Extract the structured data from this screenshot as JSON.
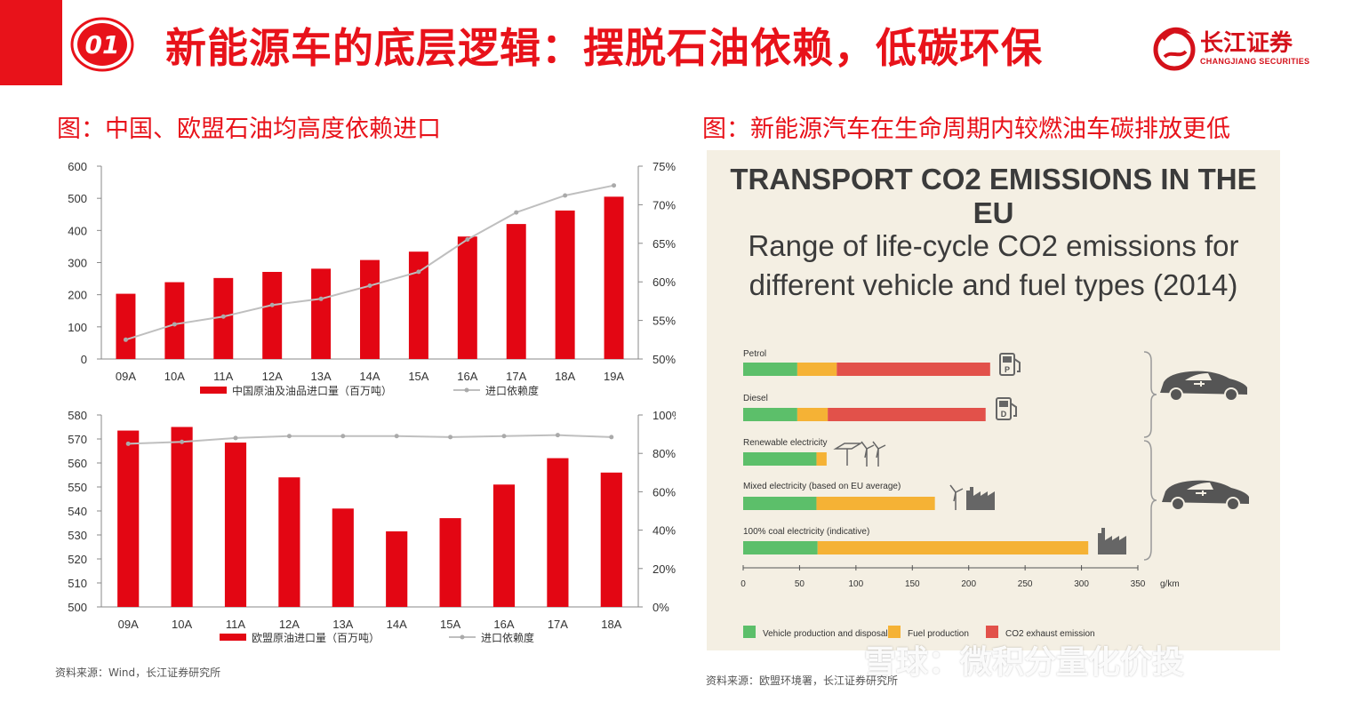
{
  "header": {
    "number": "01",
    "title": "新能源车的底层逻辑：摆脱石油依赖，低碳环保",
    "logo_main": "长江证券",
    "logo_sub": "CHANGJIANG SECURITIES"
  },
  "figure_left_title": "图：中国、欧盟石油均高度依赖进口",
  "figure_right_title": "图：新能源汽车在生命周期内较燃油车碳排放更低",
  "source_left": "资料来源：Wind，长江证券研究所",
  "source_right": "资料来源：欧盟环境署，长江证券研究所",
  "watermark": "雪球：微积分量化价投",
  "colors": {
    "accent": "#e8121a",
    "bar_red": "#e30613",
    "line_gray": "#bfbfbf",
    "green": "#5cbf6a",
    "orange": "#f5b235",
    "red_emission": "#e2514a"
  },
  "chart_data": [
    {
      "type": "bar",
      "categories": [
        "09A",
        "10A",
        "11A",
        "12A",
        "13A",
        "14A",
        "15A",
        "16A",
        "17A",
        "18A",
        "19A"
      ],
      "series": [
        {
          "name": "中国原油及油品进口量（百万吨）",
          "axis": "left",
          "values": [
            203,
            239,
            252,
            271,
            281,
            308,
            334,
            381,
            420,
            462,
            505
          ]
        },
        {
          "name": "进口依赖度",
          "axis": "right",
          "type": "line",
          "values": [
            52.5,
            54.5,
            55.5,
            57.0,
            57.8,
            59.5,
            61.3,
            65.5,
            69.0,
            71.2,
            72.5
          ]
        }
      ],
      "y_left": {
        "range": [
          0,
          600
        ],
        "ticks": [
          "0",
          "100",
          "200",
          "300",
          "400",
          "500",
          "600"
        ]
      },
      "y_right": {
        "range": [
          50,
          75
        ],
        "ticks": [
          "50%",
          "55%",
          "60%",
          "65%",
          "70%",
          "75%"
        ]
      },
      "legend": "bottom"
    },
    {
      "type": "bar",
      "categories": [
        "09A",
        "10A",
        "11A",
        "12A",
        "13A",
        "14A",
        "15A",
        "16A",
        "17A",
        "18A"
      ],
      "series": [
        {
          "name": "欧盟原油进口量（百万吨）",
          "axis": "left",
          "values": [
            573.5,
            575,
            568.5,
            554,
            541,
            531.5,
            537,
            551,
            562,
            556
          ]
        },
        {
          "name": "进口依赖度",
          "axis": "right",
          "type": "line",
          "values": [
            85,
            86,
            88,
            89,
            89,
            89,
            88.5,
            89,
            89.5,
            88.5
          ]
        }
      ],
      "y_left": {
        "range": [
          500,
          580
        ],
        "ticks": [
          "500",
          "510",
          "520",
          "530",
          "540",
          "550",
          "560",
          "570",
          "580"
        ]
      },
      "y_right": {
        "range": [
          0,
          100
        ],
        "ticks": [
          "0%",
          "20%",
          "40%",
          "60%",
          "80%",
          "100%"
        ]
      },
      "legend": "bottom"
    },
    {
      "type": "bar",
      "stacked": true,
      "orientation": "horizontal",
      "title": "TRANSPORT CO2 EMISSIONS IN THE EU",
      "subtitle_line1": "Range of life-cycle CO2 emissions for",
      "subtitle_line2": "different vehicle and fuel types (2014)",
      "categories": [
        "Petrol",
        "Diesel",
        "Renewable electricity",
        "Mixed electricity (based on EU average)",
        "100% coal electricity (indicative)"
      ],
      "series": [
        {
          "name": "Vehicle production and disposal",
          "values": [
            48,
            48,
            65,
            65,
            66
          ]
        },
        {
          "name": "Fuel production",
          "values": [
            35,
            27,
            9,
            105,
            240
          ]
        },
        {
          "name": "CO2 exhaust emission",
          "values": [
            136,
            140,
            0,
            0,
            0
          ]
        }
      ],
      "x_ticks": [
        "0",
        "50",
        "100",
        "150",
        "200",
        "250",
        "300",
        "350"
      ],
      "x_unit": "g/km",
      "xlim": [
        0,
        350
      ],
      "legend": "bottom"
    }
  ]
}
